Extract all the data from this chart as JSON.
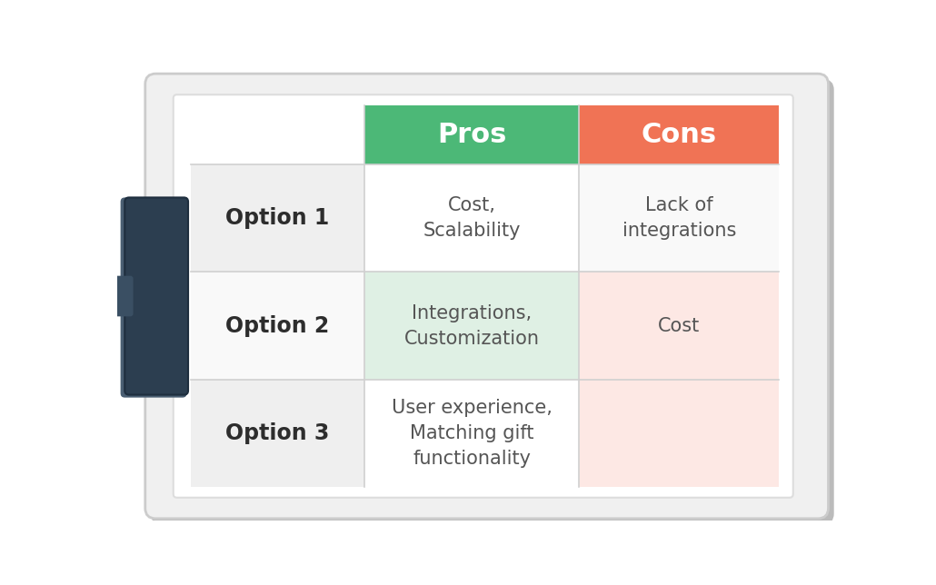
{
  "bg_color": "#ffffff",
  "clipboard_border": "#cccccc",
  "header_pros_bg": "#4cb877",
  "header_cons_bg": "#f07355",
  "header_text_color": "#ffffff",
  "row1_label_bg": "#efefef",
  "row2_label_bg": "#f9f9f9",
  "row3_label_bg": "#efefef",
  "row1_pros_bg": "#ffffff",
  "row2_pros_bg": "#dff0e4",
  "row3_pros_bg": "#ffffff",
  "row1_cons_bg": "#f9f9f9",
  "row2_cons_bg": "#fde8e4",
  "row3_cons_bg": "#fde8e4",
  "label_text_color": "#2d2d2d",
  "cell_text_color": "#555555",
  "rows": [
    "Option 1",
    "Option 2",
    "Option 3"
  ],
  "pros": [
    "Cost,\nScalability",
    "Integrations,\nCustomization",
    "User experience,\nMatching gift\nfunctionality"
  ],
  "cons": [
    "Lack of\nintegrations",
    "Cost",
    ""
  ],
  "clip_dark": "#2c3e50",
  "clip_mid": "#3a4f63",
  "clip_light": "#8899aa",
  "shadow_color": "#aaaaaa"
}
